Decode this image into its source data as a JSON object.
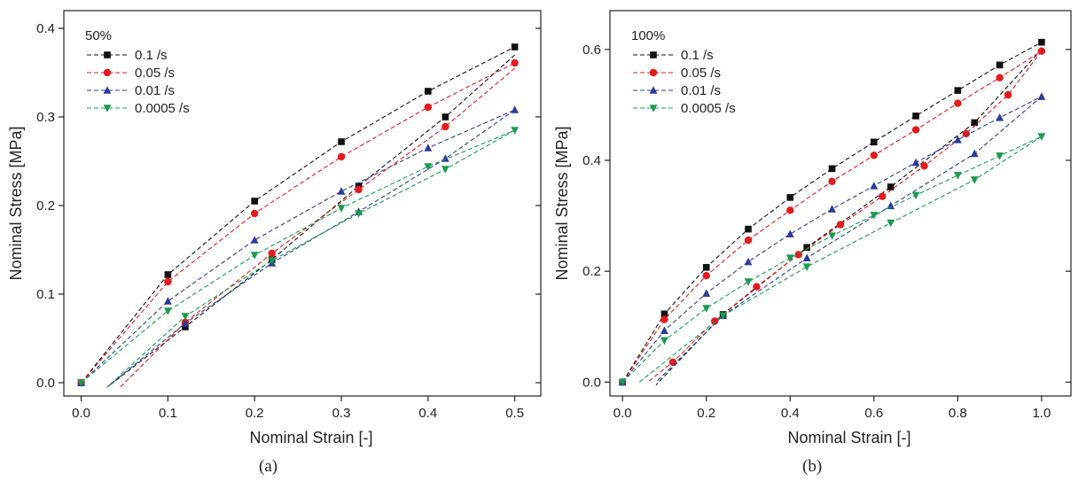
{
  "chart_data": [
    {
      "type": "line",
      "panel_caption": "(a)",
      "legend_title": "50%",
      "xlabel": "Nominal Strain [-]",
      "ylabel": "Nominal Stress [MPa]",
      "xlim": [
        -0.02,
        0.53
      ],
      "ylim": [
        -0.015,
        0.42
      ],
      "xticks": [
        0.0,
        0.1,
        0.2,
        0.3,
        0.4,
        0.5
      ],
      "xtick_labels": [
        "0.0",
        "0.1",
        "0.2",
        "0.3",
        "0.4",
        "0.5"
      ],
      "yticks": [
        0.0,
        0.1,
        0.2,
        0.3,
        0.4
      ],
      "ytick_labels": [
        "0.0",
        "0.1",
        "0.2",
        "0.3",
        "0.4"
      ],
      "legend_position": "top-left",
      "series": [
        {
          "name": "0.1 /s",
          "color": "#111111",
          "marker": "square",
          "loading": {
            "x": [
              0,
              0.1,
              0.2,
              0.3,
              0.4,
              0.5
            ],
            "y": [
              0.0,
              0.122,
              0.205,
              0.272,
              0.329,
              0.379
            ]
          },
          "unloading": {
            "x": [
              0.5,
              0.42,
              0.32,
              0.22,
              0.12,
              0.03
            ],
            "y": [
              0.37,
              0.3,
              0.222,
              0.139,
              0.063,
              -0.005
            ]
          }
        },
        {
          "name": "0.05 /s",
          "color": "#e41a1c",
          "marker": "circle",
          "loading": {
            "x": [
              0,
              0.1,
              0.2,
              0.3,
              0.4,
              0.5
            ],
            "y": [
              0.0,
              0.114,
              0.191,
              0.255,
              0.311,
              0.361
            ]
          },
          "unloading": {
            "x": [
              0.5,
              0.42,
              0.32,
              0.22,
              0.12,
              0.045
            ],
            "y": [
              0.355,
              0.289,
              0.218,
              0.146,
              0.068,
              -0.005
            ]
          }
        },
        {
          "name": "0.01 /s",
          "color": "#2b3a9a",
          "marker": "triangle-up",
          "loading": {
            "x": [
              0,
              0.1,
              0.2,
              0.3,
              0.4,
              0.5
            ],
            "y": [
              0.0,
              0.092,
              0.161,
              0.216,
              0.265,
              0.308
            ]
          },
          "unloading": {
            "x": [
              0.5,
              0.42,
              0.32,
              0.22,
              0.12,
              0.03
            ],
            "y": [
              0.308,
              0.253,
              0.193,
              0.135,
              0.067,
              -0.005
            ]
          }
        },
        {
          "name": "0.0005 /s",
          "color": "#1a9a50",
          "marker": "triangle-down",
          "loading": {
            "x": [
              0,
              0.1,
              0.2,
              0.3,
              0.4,
              0.5
            ],
            "y": [
              0.0,
              0.081,
              0.144,
              0.197,
              0.244,
              0.285
            ]
          },
          "unloading": {
            "x": [
              0.5,
              0.42,
              0.32,
              0.22,
              0.12,
              0.03
            ],
            "y": [
              0.285,
              0.241,
              0.191,
              0.138,
              0.075,
              -0.005
            ]
          }
        }
      ]
    },
    {
      "type": "line",
      "panel_caption": "(b)",
      "legend_title": "100%",
      "xlabel": "Nominal Strain [-]",
      "ylabel": "Nominal Stress [MPa]",
      "xlim": [
        -0.03,
        1.07
      ],
      "ylim": [
        -0.025,
        0.67
      ],
      "xticks": [
        0.0,
        0.2,
        0.4,
        0.6,
        0.8,
        1.0
      ],
      "xtick_labels": [
        "0.0",
        "0.2",
        "0.4",
        "0.6",
        "0.8",
        "1.0"
      ],
      "yticks": [
        0.0,
        0.2,
        0.4,
        0.6
      ],
      "ytick_labels": [
        "0.0",
        "0.2",
        "0.4",
        "0.6"
      ],
      "legend_position": "top-left",
      "series": [
        {
          "name": "0.1 /s",
          "color": "#111111",
          "marker": "square",
          "loading": {
            "x": [
              0,
              0.1,
              0.2,
              0.3,
              0.4,
              0.5,
              0.6,
              0.7,
              0.8,
              0.9,
              1.0
            ],
            "y": [
              0.0,
              0.123,
              0.207,
              0.276,
              0.333,
              0.385,
              0.433,
              0.48,
              0.526,
              0.572,
              0.613
            ]
          },
          "unloading": {
            "x": [
              1.0,
              0.84,
              0.64,
              0.44,
              0.24,
              0.08
            ],
            "y": [
              0.6,
              0.468,
              0.352,
              0.243,
              0.122,
              -0.005
            ]
          }
        },
        {
          "name": "0.05 /s",
          "color": "#e41a1c",
          "marker": "circle",
          "loading": {
            "x": [
              0,
              0.1,
              0.2,
              0.3,
              0.4,
              0.5,
              0.6,
              0.7,
              0.8,
              0.9,
              1.0
            ],
            "y": [
              0.0,
              0.113,
              0.192,
              0.256,
              0.31,
              0.362,
              0.409,
              0.455,
              0.503,
              0.549,
              0.597
            ]
          },
          "unloading": {
            "x": [
              1.0,
              0.92,
              0.82,
              0.72,
              0.62,
              0.52,
              0.42,
              0.32,
              0.22,
              0.12,
              0.06
            ],
            "y": [
              0.597,
              0.518,
              0.448,
              0.39,
              0.335,
              0.284,
              0.23,
              0.172,
              0.11,
              0.036,
              0.0
            ]
          }
        },
        {
          "name": "0.01 /s",
          "color": "#2b3a9a",
          "marker": "triangle-up",
          "loading": {
            "x": [
              0,
              0.1,
              0.2,
              0.3,
              0.4,
              0.5,
              0.6,
              0.7,
              0.8,
              0.9,
              1.0
            ],
            "y": [
              0.0,
              0.093,
              0.16,
              0.217,
              0.267,
              0.312,
              0.354,
              0.396,
              0.437,
              0.477,
              0.515
            ]
          },
          "unloading": {
            "x": [
              1.0,
              0.84,
              0.64,
              0.44,
              0.24,
              0.08
            ],
            "y": [
              0.515,
              0.412,
              0.318,
              0.224,
              0.12,
              0.0
            ]
          }
        },
        {
          "name": "0.0005 /s",
          "color": "#1a9a50",
          "marker": "triangle-down",
          "loading": {
            "x": [
              0,
              0.1,
              0.2,
              0.3,
              0.4,
              0.5,
              0.6,
              0.7,
              0.8,
              0.9,
              1.0
            ],
            "y": [
              0.0,
              0.075,
              0.133,
              0.181,
              0.224,
              0.264,
              0.301,
              0.337,
              0.373,
              0.408,
              0.443
            ]
          },
          "unloading": {
            "x": [
              1.0,
              0.84,
              0.64,
              0.44,
              0.24,
              0.04
            ],
            "y": [
              0.443,
              0.365,
              0.287,
              0.208,
              0.12,
              0.0
            ]
          }
        }
      ]
    }
  ]
}
